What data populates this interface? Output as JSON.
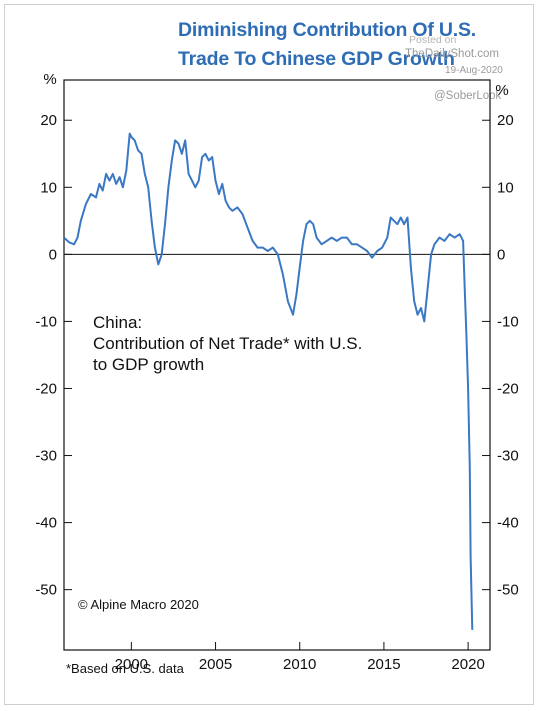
{
  "header": {
    "title_line1": "Diminishing Contribution Of U.S.",
    "title_line2": "Trade To Chinese GDP Growth",
    "watermark_posted": "Posted on",
    "watermark_site": "TheDailyShot.com",
    "watermark_date": "19-Aug-2020",
    "watermark_handle": "@SoberLook"
  },
  "chart_data": {
    "type": "line",
    "annotation": [
      "China:",
      "Contribution of Net Trade* with U.S.",
      "to GDP growth"
    ],
    "unit_left": "%",
    "unit_right": "%",
    "copyright": "© Alpine Macro 2020",
    "footnote": "*Based on U.S. data",
    "xlim": [
      1996,
      2021.3
    ],
    "ylim": [
      -59,
      26
    ],
    "x_ticks": [
      2000,
      2005,
      2010,
      2015,
      2020
    ],
    "x_tick_labels": [
      "2000",
      "2005",
      "2010",
      "2015",
      "2020"
    ],
    "y_ticks": [
      20,
      10,
      0,
      -10,
      -20,
      -30,
      -40,
      -50
    ],
    "y_tick_labels": [
      "20",
      "10",
      "0",
      "-10",
      "-20",
      "-30",
      "-40",
      "-50"
    ],
    "zero_line": true,
    "grid": false,
    "line_color": "#3a78c4",
    "series": [
      {
        "x": [
          1996.0,
          1996.3,
          1996.6,
          1996.8,
          1997.0,
          1997.3,
          1997.6,
          1997.9,
          1998.1,
          1998.3,
          1998.5,
          1998.7,
          1998.9,
          1999.1,
          1999.3,
          1999.5,
          1999.7,
          1999.9,
          2000.0,
          2000.2,
          2000.4,
          2000.6,
          2000.8,
          2001.0,
          2001.2,
          2001.4,
          2001.6,
          2001.8,
          2002.0,
          2002.2,
          2002.4,
          2002.6,
          2002.8,
          2003.0,
          2003.2,
          2003.4,
          2003.6,
          2003.8,
          2004.0,
          2004.2,
          2004.4,
          2004.6,
          2004.8,
          2005.0,
          2005.2,
          2005.4,
          2005.6,
          2005.8,
          2006.0,
          2006.3,
          2006.6,
          2006.9,
          2007.2,
          2007.5,
          2007.8,
          2008.1,
          2008.4,
          2008.7,
          2009.0,
          2009.3,
          2009.6,
          2009.8,
          2010.0,
          2010.2,
          2010.4,
          2010.6,
          2010.8,
          2011.0,
          2011.3,
          2011.6,
          2011.9,
          2012.2,
          2012.5,
          2012.8,
          2013.1,
          2013.4,
          2013.7,
          2014.0,
          2014.3,
          2014.6,
          2014.9,
          2015.2,
          2015.4,
          2015.6,
          2015.8,
          2016.0,
          2016.2,
          2016.4,
          2016.6,
          2016.8,
          2017.0,
          2017.2,
          2017.4,
          2017.6,
          2017.8,
          2018.0,
          2018.3,
          2018.6,
          2018.9,
          2019.2,
          2019.5,
          2019.7,
          2019.8,
          2019.9,
          2020.0,
          2020.1,
          2020.15,
          2020.25
        ],
        "y": [
          2.5,
          1.8,
          1.5,
          2.5,
          5.0,
          7.5,
          9.0,
          8.5,
          10.5,
          9.5,
          12.0,
          11.0,
          12.0,
          10.5,
          11.5,
          10.0,
          12.5,
          18.0,
          17.5,
          17.0,
          15.5,
          15.0,
          12.0,
          10.0,
          5.0,
          1.0,
          -1.5,
          0.0,
          4.5,
          10.0,
          14.0,
          17.0,
          16.5,
          15.0,
          17.0,
          12.0,
          11.0,
          10.0,
          11.0,
          14.5,
          15.0,
          14.0,
          14.5,
          11.0,
          9.0,
          10.5,
          8.0,
          7.0,
          6.5,
          7.0,
          6.0,
          4.0,
          2.0,
          1.0,
          1.0,
          0.5,
          1.0,
          0.0,
          -3.0,
          -7.0,
          -9.0,
          -6.0,
          -2.0,
          2.0,
          4.5,
          5.0,
          4.5,
          2.5,
          1.5,
          2.0,
          2.5,
          2.0,
          2.5,
          2.5,
          1.5,
          1.5,
          1.0,
          0.5,
          -0.5,
          0.5,
          1.0,
          2.5,
          5.5,
          5.0,
          4.5,
          5.5,
          4.5,
          5.5,
          -2.0,
          -7.0,
          -9.0,
          -8.0,
          -10.0,
          -5.0,
          0.0,
          1.5,
          2.5,
          2.0,
          3.0,
          2.5,
          3.0,
          2.0,
          -5.0,
          -12.0,
          -20.0,
          -32.0,
          -45.0,
          -56.0
        ]
      }
    ]
  }
}
